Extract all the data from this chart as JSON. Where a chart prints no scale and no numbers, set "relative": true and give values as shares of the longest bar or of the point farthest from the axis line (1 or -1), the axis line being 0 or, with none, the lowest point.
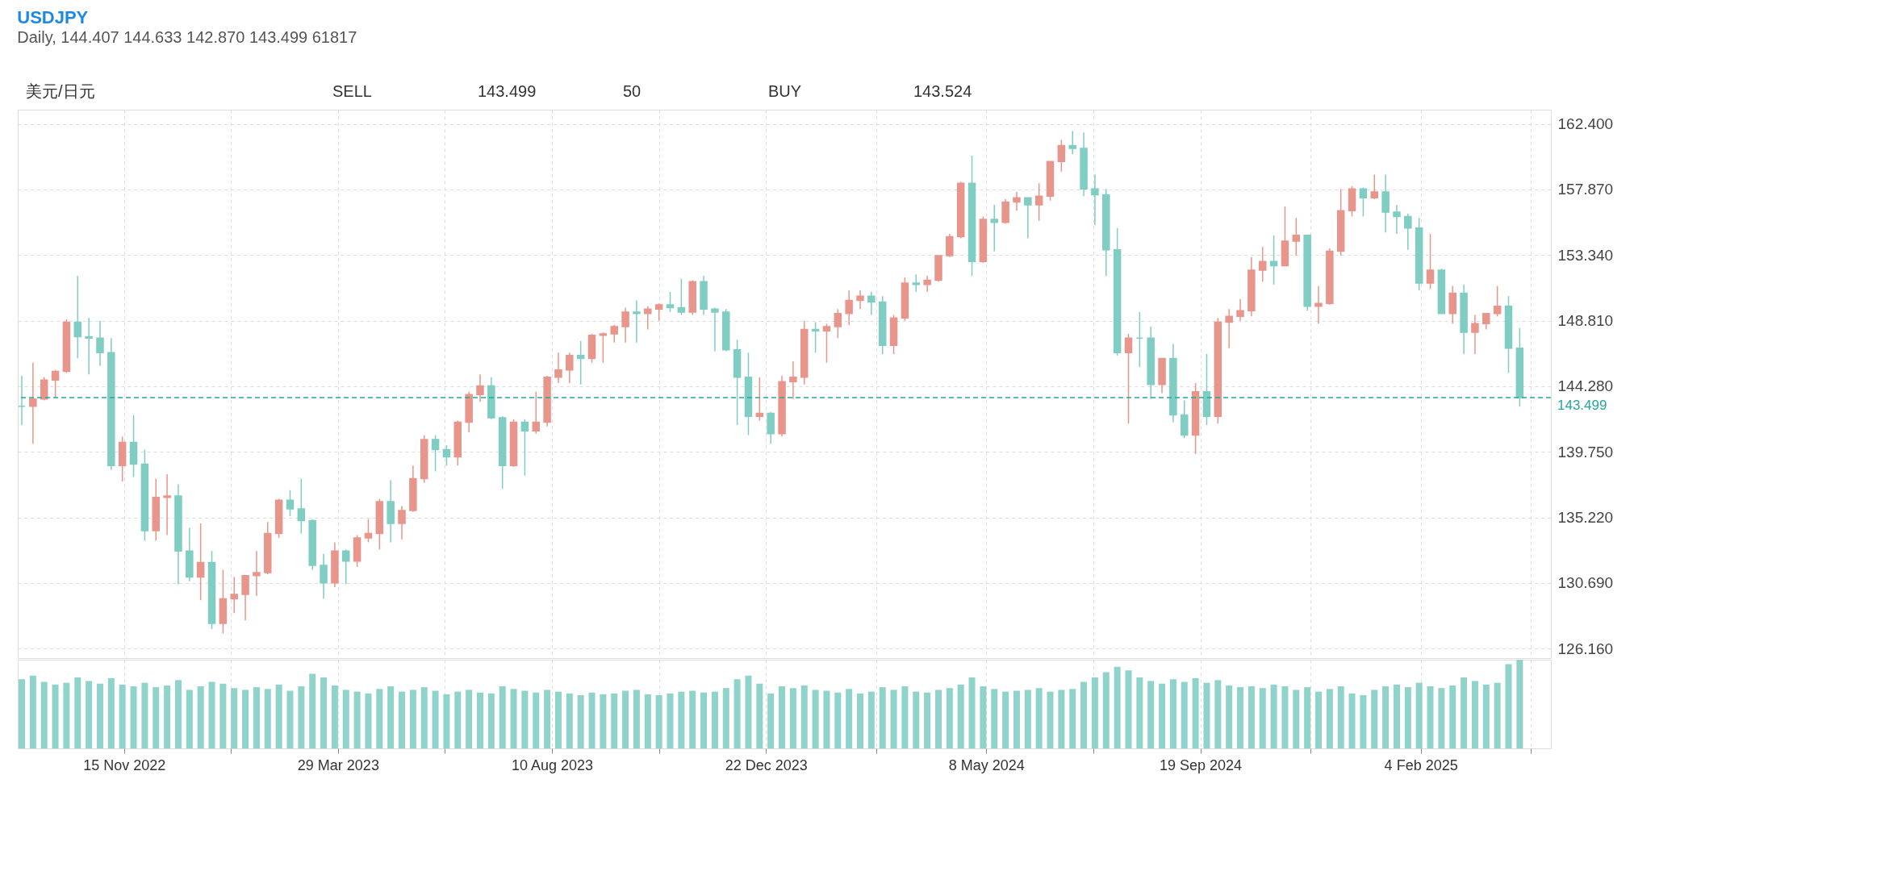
{
  "chart_data": [
    {
      "type": "candlestick",
      "title": "USDJPY",
      "subtitle": "Daily, 144.407 144.633 142.870 143.499 61817",
      "annotations": [
        "美元/日元",
        "SELL",
        "143.499",
        "50",
        "BUY",
        "143.524"
      ],
      "x": [
        "2022-09-12",
        "2022-09-19",
        "2022-09-26",
        "2022-10-03",
        "2022-10-10",
        "2022-10-17",
        "2022-10-24",
        "2022-10-31",
        "2022-11-07",
        "2022-11-14",
        "2022-11-21",
        "2022-11-28",
        "2022-12-05",
        "2022-12-12",
        "2022-12-19",
        "2022-12-26",
        "2023-01-02",
        "2023-01-09",
        "2023-01-16",
        "2023-01-23",
        "2023-01-30",
        "2023-02-06",
        "2023-02-13",
        "2023-02-20",
        "2023-02-27",
        "2023-03-06",
        "2023-03-13",
        "2023-03-20",
        "2023-03-27",
        "2023-04-03",
        "2023-04-10",
        "2023-04-17",
        "2023-04-24",
        "2023-05-01",
        "2023-05-08",
        "2023-05-15",
        "2023-05-22",
        "2023-05-29",
        "2023-06-05",
        "2023-06-12",
        "2023-06-19",
        "2023-06-26",
        "2023-07-03",
        "2023-07-10",
        "2023-07-17",
        "2023-07-24",
        "2023-07-31",
        "2023-08-07",
        "2023-08-14",
        "2023-08-21",
        "2023-08-28",
        "2023-09-04",
        "2023-09-11",
        "2023-09-18",
        "2023-09-25",
        "2023-10-02",
        "2023-10-09",
        "2023-10-16",
        "2023-10-23",
        "2023-10-30",
        "2023-11-06",
        "2023-11-13",
        "2023-11-20",
        "2023-11-27",
        "2023-12-04",
        "2023-12-11",
        "2023-12-18",
        "2023-12-25",
        "2024-01-01",
        "2024-01-08",
        "2024-01-15",
        "2024-01-22",
        "2024-01-29",
        "2024-02-05",
        "2024-02-12",
        "2024-02-19",
        "2024-02-26",
        "2024-03-04",
        "2024-03-11",
        "2024-03-18",
        "2024-03-25",
        "2024-04-01",
        "2024-04-08",
        "2024-04-15",
        "2024-04-22",
        "2024-04-29",
        "2024-05-06",
        "2024-05-13",
        "2024-05-20",
        "2024-05-27",
        "2024-06-03",
        "2024-06-10",
        "2024-06-17",
        "2024-06-24",
        "2024-07-01",
        "2024-07-08",
        "2024-07-15",
        "2024-07-22",
        "2024-07-29",
        "2024-08-05",
        "2024-08-12",
        "2024-08-19",
        "2024-08-26",
        "2024-09-02",
        "2024-09-09",
        "2024-09-16",
        "2024-09-23",
        "2024-09-30",
        "2024-10-07",
        "2024-10-14",
        "2024-10-21",
        "2024-10-28",
        "2024-11-04",
        "2024-11-11",
        "2024-11-18",
        "2024-11-25",
        "2024-12-02",
        "2024-12-09",
        "2024-12-16",
        "2024-12-23",
        "2024-12-30",
        "2025-01-06",
        "2025-01-13",
        "2025-01-20",
        "2025-01-27",
        "2025-02-03",
        "2025-02-10",
        "2025-02-17",
        "2025-02-24",
        "2025-03-03",
        "2025-03-10",
        "2025-03-17",
        "2025-03-24",
        "2025-03-31",
        "2025-04-07"
      ],
      "ohlc": [
        [
          142.9,
          145.0,
          141.6,
          142.9
        ],
        [
          142.9,
          145.9,
          140.3,
          143.4
        ],
        [
          143.4,
          144.9,
          143.3,
          144.7
        ],
        [
          144.7,
          145.4,
          143.5,
          145.3
        ],
        [
          145.3,
          148.9,
          145.2,
          148.7
        ],
        [
          148.7,
          151.9,
          146.2,
          147.7
        ],
        [
          147.7,
          149.0,
          145.1,
          147.6
        ],
        [
          147.6,
          148.8,
          145.7,
          146.6
        ],
        [
          146.6,
          147.6,
          138.5,
          138.8
        ],
        [
          138.8,
          140.8,
          137.7,
          140.4
        ],
        [
          140.4,
          142.3,
          138.0,
          138.9
        ],
        [
          138.9,
          139.9,
          133.6,
          134.3
        ],
        [
          134.3,
          137.9,
          133.6,
          136.6
        ],
        [
          136.6,
          138.2,
          134.0,
          136.7
        ],
        [
          136.7,
          137.5,
          130.6,
          132.9
        ],
        [
          132.9,
          134.5,
          130.8,
          131.1
        ],
        [
          131.1,
          134.8,
          129.5,
          132.1
        ],
        [
          132.1,
          132.9,
          127.5,
          127.9
        ],
        [
          127.9,
          131.6,
          127.2,
          129.6
        ],
        [
          129.6,
          131.1,
          128.6,
          129.9
        ],
        [
          129.9,
          131.2,
          128.1,
          131.2
        ],
        [
          131.2,
          132.9,
          129.8,
          131.4
        ],
        [
          131.4,
          134.9,
          131.3,
          134.1
        ],
        [
          134.1,
          136.5,
          133.8,
          136.4
        ],
        [
          136.4,
          137.1,
          135.3,
          135.8
        ],
        [
          135.8,
          137.9,
          134.1,
          135.0
        ],
        [
          135.0,
          135.1,
          131.6,
          131.9
        ],
        [
          131.9,
          132.7,
          129.6,
          130.7
        ],
        [
          130.7,
          133.5,
          130.4,
          132.9
        ],
        [
          132.9,
          133.0,
          130.6,
          132.2
        ],
        [
          132.2,
          134.0,
          131.8,
          133.8
        ],
        [
          133.8,
          135.1,
          133.5,
          134.1
        ],
        [
          134.1,
          136.5,
          133.0,
          136.3
        ],
        [
          136.3,
          137.8,
          133.5,
          134.8
        ],
        [
          134.8,
          136.0,
          133.7,
          135.7
        ],
        [
          135.7,
          138.8,
          135.6,
          137.9
        ],
        [
          137.9,
          140.9,
          137.6,
          140.6
        ],
        [
          140.6,
          140.9,
          138.4,
          139.9
        ],
        [
          139.9,
          140.2,
          138.8,
          139.4
        ],
        [
          139.4,
          141.9,
          138.8,
          141.8
        ],
        [
          141.8,
          143.9,
          141.1,
          143.7
        ],
        [
          143.7,
          145.1,
          143.2,
          144.3
        ],
        [
          144.3,
          144.9,
          142.0,
          142.1
        ],
        [
          142.1,
          142.2,
          137.2,
          138.8
        ],
        [
          138.8,
          142.0,
          138.7,
          141.8
        ],
        [
          141.8,
          142.0,
          138.1,
          141.2
        ],
        [
          141.2,
          143.9,
          141.0,
          141.8
        ],
        [
          141.8,
          145.0,
          141.5,
          144.9
        ],
        [
          144.9,
          146.6,
          144.5,
          145.4
        ],
        [
          145.4,
          146.6,
          144.5,
          146.4
        ],
        [
          146.4,
          147.4,
          144.4,
          146.2
        ],
        [
          146.2,
          147.9,
          145.9,
          147.8
        ],
        [
          147.8,
          148.0,
          145.9,
          147.9
        ],
        [
          147.9,
          148.5,
          147.3,
          148.4
        ],
        [
          148.4,
          149.7,
          147.3,
          149.4
        ],
        [
          149.4,
          150.2,
          147.3,
          149.3
        ],
        [
          149.3,
          149.8,
          148.2,
          149.6
        ],
        [
          149.6,
          150.0,
          148.8,
          149.9
        ],
        [
          149.9,
          150.8,
          149.4,
          149.7
        ],
        [
          149.7,
          151.7,
          149.2,
          149.4
        ],
        [
          149.4,
          151.6,
          149.2,
          151.5
        ],
        [
          151.5,
          151.9,
          149.2,
          149.6
        ],
        [
          149.6,
          149.7,
          146.7,
          149.4
        ],
        [
          149.4,
          149.6,
          146.7,
          146.8
        ],
        [
          146.8,
          147.5,
          141.6,
          144.9
        ],
        [
          144.9,
          146.6,
          140.9,
          142.2
        ],
        [
          142.2,
          144.9,
          141.9,
          142.4
        ],
        [
          142.4,
          142.5,
          140.3,
          141.0
        ],
        [
          141.0,
          145.0,
          140.8,
          144.6
        ],
        [
          144.6,
          146.0,
          143.4,
          144.9
        ],
        [
          144.9,
          148.8,
          144.4,
          148.2
        ],
        [
          148.2,
          148.7,
          146.6,
          148.1
        ],
        [
          148.1,
          148.6,
          145.9,
          148.4
        ],
        [
          148.4,
          149.6,
          147.6,
          149.3
        ],
        [
          149.3,
          150.9,
          148.5,
          150.2
        ],
        [
          150.2,
          150.9,
          149.6,
          150.5
        ],
        [
          150.5,
          150.8,
          149.2,
          150.1
        ],
        [
          150.1,
          150.5,
          146.5,
          147.1
        ],
        [
          147.1,
          149.2,
          146.5,
          149.0
        ],
        [
          149.0,
          151.8,
          148.8,
          151.4
        ],
        [
          151.4,
          152.0,
          150.8,
          151.3
        ],
        [
          151.3,
          151.9,
          150.8,
          151.6
        ],
        [
          151.6,
          153.3,
          151.5,
          153.3
        ],
        [
          153.3,
          154.8,
          153.2,
          154.6
        ],
        [
          154.6,
          158.4,
          154.5,
          158.3
        ],
        [
          158.3,
          160.2,
          151.9,
          152.9
        ],
        [
          152.9,
          156.0,
          152.8,
          155.8
        ],
        [
          155.8,
          156.8,
          153.6,
          155.6
        ],
        [
          155.6,
          157.2,
          155.5,
          157.0
        ],
        [
          157.0,
          157.7,
          156.4,
          157.3
        ],
        [
          157.3,
          157.3,
          154.5,
          156.8
        ],
        [
          156.8,
          158.3,
          155.7,
          157.4
        ],
        [
          157.4,
          159.8,
          157.1,
          159.8
        ],
        [
          159.8,
          161.3,
          159.1,
          160.9
        ],
        [
          160.9,
          161.9,
          160.3,
          160.7
        ],
        [
          160.7,
          161.8,
          157.4,
          157.9
        ],
        [
          157.9,
          158.9,
          155.4,
          157.5
        ],
        [
          157.5,
          157.9,
          151.9,
          153.7
        ],
        [
          153.7,
          155.2,
          146.4,
          146.6
        ],
        [
          146.6,
          147.9,
          141.7,
          147.6
        ],
        [
          147.6,
          149.4,
          145.6,
          147.6
        ],
        [
          147.6,
          148.4,
          143.4,
          144.4
        ],
        [
          144.4,
          146.2,
          143.8,
          146.2
        ],
        [
          146.2,
          147.2,
          141.8,
          142.3
        ],
        [
          142.3,
          143.3,
          140.7,
          140.9
        ],
        [
          140.9,
          144.5,
          139.6,
          143.9
        ],
        [
          143.9,
          146.5,
          141.6,
          142.2
        ],
        [
          142.2,
          149.0,
          141.7,
          148.7
        ],
        [
          148.7,
          149.6,
          146.9,
          149.1
        ],
        [
          149.1,
          150.3,
          148.8,
          149.5
        ],
        [
          149.5,
          153.2,
          149.1,
          152.3
        ],
        [
          152.3,
          153.9,
          151.5,
          152.9
        ],
        [
          152.9,
          154.7,
          151.3,
          152.6
        ],
        [
          152.6,
          156.7,
          152.6,
          154.3
        ],
        [
          154.3,
          155.9,
          153.3,
          154.7
        ],
        [
          154.7,
          154.7,
          149.5,
          149.8
        ],
        [
          149.8,
          151.2,
          148.6,
          150.0
        ],
        [
          150.0,
          153.8,
          149.9,
          153.6
        ],
        [
          153.6,
          157.9,
          153.3,
          156.4
        ],
        [
          156.4,
          158.1,
          156.0,
          157.9
        ],
        [
          157.9,
          158.0,
          156.0,
          157.3
        ],
        [
          157.3,
          158.9,
          157.2,
          157.7
        ],
        [
          157.7,
          158.9,
          154.9,
          156.3
        ],
        [
          156.3,
          156.8,
          154.8,
          156.0
        ],
        [
          156.0,
          156.2,
          153.7,
          155.2
        ],
        [
          155.2,
          155.9,
          150.9,
          151.4
        ],
        [
          151.4,
          154.8,
          151.0,
          152.3
        ],
        [
          152.3,
          152.4,
          149.3,
          149.3
        ],
        [
          149.3,
          151.2,
          148.6,
          150.7
        ],
        [
          150.7,
          151.3,
          146.5,
          148.0
        ],
        [
          148.0,
          149.2,
          146.5,
          148.6
        ],
        [
          148.6,
          149.3,
          148.2,
          149.3
        ],
        [
          149.3,
          151.2,
          149.1,
          149.8
        ],
        [
          149.8,
          150.5,
          145.2,
          146.9
        ],
        [
          146.9,
          148.3,
          142.87,
          143.499
        ]
      ],
      "colors": [
        "#7fcdc3",
        "#e8968c",
        "#e8968c",
        "#e8968c",
        "#e8968c",
        "#7fcdc3",
        "#7fcdc3",
        "#7fcdc3",
        "#7fcdc3",
        "#e8968c",
        "#7fcdc3",
        "#7fcdc3",
        "#e8968c",
        "#e8968c",
        "#7fcdc3",
        "#7fcdc3",
        "#e8968c",
        "#7fcdc3",
        "#e8968c",
        "#e8968c",
        "#e8968c",
        "#e8968c",
        "#e8968c",
        "#e8968c",
        "#7fcdc3",
        "#7fcdc3",
        "#7fcdc3",
        "#7fcdc3",
        "#e8968c",
        "#7fcdc3",
        "#e8968c",
        "#e8968c",
        "#e8968c",
        "#7fcdc3",
        "#e8968c",
        "#e8968c",
        "#e8968c",
        "#7fcdc3",
        "#7fcdc3",
        "#e8968c",
        "#e8968c",
        "#e8968c",
        "#7fcdc3",
        "#7fcdc3",
        "#e8968c",
        "#7fcdc3",
        "#e8968c",
        "#e8968c",
        "#e8968c",
        "#e8968c",
        "#7fcdc3",
        "#e8968c",
        "#e8968c",
        "#e8968c",
        "#e8968c",
        "#7fcdc3",
        "#e8968c",
        "#e8968c",
        "#7fcdc3",
        "#7fcdc3",
        "#e8968c",
        "#7fcdc3",
        "#7fcdc3",
        "#7fcdc3",
        "#7fcdc3",
        "#7fcdc3",
        "#e8968c",
        "#7fcdc3",
        "#e8968c",
        "#e8968c",
        "#e8968c",
        "#7fcdc3",
        "#e8968c",
        "#e8968c",
        "#e8968c",
        "#e8968c",
        "#7fcdc3",
        "#7fcdc3",
        "#e8968c",
        "#e8968c",
        "#7fcdc3",
        "#e8968c",
        "#e8968c",
        "#e8968c",
        "#e8968c",
        "#7fcdc3",
        "#e8968c",
        "#7fcdc3",
        "#e8968c",
        "#e8968c",
        "#7fcdc3",
        "#e8968c",
        "#e8968c",
        "#e8968c",
        "#7fcdc3",
        "#7fcdc3",
        "#7fcdc3",
        "#7fcdc3",
        "#7fcdc3",
        "#e8968c",
        "#7fcdc3",
        "#7fcdc3",
        "#e8968c",
        "#7fcdc3",
        "#7fcdc3",
        "#e8968c",
        "#7fcdc3",
        "#e8968c",
        "#e8968c",
        "#e8968c",
        "#e8968c",
        "#e8968c",
        "#7fcdc3",
        "#e8968c",
        "#e8968c",
        "#7fcdc3",
        "#e8968c",
        "#e8968c",
        "#e8968c",
        "#e8968c",
        "#7fcdc3",
        "#e8968c",
        "#7fcdc3",
        "#7fcdc3",
        "#7fcdc3",
        "#7fcdc3",
        "#e8968c",
        "#7fcdc3",
        "#e8968c",
        "#7fcdc3",
        "#e8968c",
        "#e8968c",
        "#e8968c",
        "#7fcdc3",
        "#7fcdc3"
      ],
      "xlim": [
        "2022-09-12",
        "2025-04-24"
      ],
      "xticks": [
        {
          "value": "2022-11-15",
          "label": null
        },
        {
          "value": "2023-01-21",
          "label": null
        },
        {
          "value": "2023-03-29",
          "label": null
        },
        {
          "value": "2023-06-04",
          "label": null
        },
        {
          "value": "2023-08-10",
          "label": null
        },
        {
          "value": "2023-10-16",
          "label": null
        },
        {
          "value": "2023-12-22",
          "label": null
        },
        {
          "value": "2024-02-29",
          "label": null
        },
        {
          "value": "2024-05-08",
          "label": null
        },
        {
          "value": "2024-07-14",
          "label": null
        },
        {
          "value": "2024-09-19",
          "label": null
        },
        {
          "value": "2024-11-27",
          "label": null
        },
        {
          "value": "2025-02-04",
          "label": null
        },
        {
          "value": "2025-04-14",
          "label": null
        }
      ],
      "ylim": [
        125.5,
        163.38
      ],
      "yticks": [
        {
          "value": 126.16,
          "label": "126.160"
        },
        {
          "value": 130.69,
          "label": "130.690"
        },
        {
          "value": 135.22,
          "label": "135.220"
        },
        {
          "value": 139.75,
          "label": "139.750"
        },
        {
          "value": 144.28,
          "label": "144.280"
        },
        {
          "value": 148.81,
          "label": "148.810"
        },
        {
          "value": 153.34,
          "label": "153.340"
        },
        {
          "value": 157.87,
          "label": "157.870"
        },
        {
          "value": 162.4,
          "label": "162.400"
        }
      ],
      "ref_lines": [
        {
          "axis": "y",
          "value": 143.499,
          "label": "143.499",
          "color": "#26a69a",
          "line_style": "dashed"
        }
      ],
      "grid": true,
      "tick_labels": "y"
    },
    {
      "type": "bar",
      "relative": true,
      "color": "#8fd3cb",
      "x": [
        "2022-09-12",
        "2022-09-19",
        "2022-09-26",
        "2022-10-03",
        "2022-10-10",
        "2022-10-17",
        "2022-10-24",
        "2022-10-31",
        "2022-11-07",
        "2022-11-14",
        "2022-11-21",
        "2022-11-28",
        "2022-12-05",
        "2022-12-12",
        "2022-12-19",
        "2022-12-26",
        "2023-01-02",
        "2023-01-09",
        "2023-01-16",
        "2023-01-23",
        "2023-01-30",
        "2023-02-06",
        "2023-02-13",
        "2023-02-20",
        "2023-02-27",
        "2023-03-06",
        "2023-03-13",
        "2023-03-20",
        "2023-03-27",
        "2023-04-03",
        "2023-04-10",
        "2023-04-17",
        "2023-04-24",
        "2023-05-01",
        "2023-05-08",
        "2023-05-15",
        "2023-05-22",
        "2023-05-29",
        "2023-06-05",
        "2023-06-12",
        "2023-06-19",
        "2023-06-26",
        "2023-07-03",
        "2023-07-10",
        "2023-07-17",
        "2023-07-24",
        "2023-07-31",
        "2023-08-07",
        "2023-08-14",
        "2023-08-21",
        "2023-08-28",
        "2023-09-04",
        "2023-09-11",
        "2023-09-18",
        "2023-09-25",
        "2023-10-02",
        "2023-10-09",
        "2023-10-16",
        "2023-10-23",
        "2023-10-30",
        "2023-11-06",
        "2023-11-13",
        "2023-11-20",
        "2023-11-27",
        "2023-12-04",
        "2023-12-11",
        "2023-12-18",
        "2023-12-25",
        "2024-01-01",
        "2024-01-08",
        "2024-01-15",
        "2024-01-22",
        "2024-01-29",
        "2024-02-05",
        "2024-02-12",
        "2024-02-19",
        "2024-02-26",
        "2024-03-04",
        "2024-03-11",
        "2024-03-18",
        "2024-03-25",
        "2024-04-01",
        "2024-04-08",
        "2024-04-15",
        "2024-04-22",
        "2024-04-29",
        "2024-05-06",
        "2024-05-13",
        "2024-05-20",
        "2024-05-27",
        "2024-06-03",
        "2024-06-10",
        "2024-06-17",
        "2024-06-24",
        "2024-07-01",
        "2024-07-08",
        "2024-07-15",
        "2024-07-22",
        "2024-07-29",
        "2024-08-05",
        "2024-08-12",
        "2024-08-19",
        "2024-08-26",
        "2024-09-02",
        "2024-09-09",
        "2024-09-16",
        "2024-09-23",
        "2024-09-30",
        "2024-10-07",
        "2024-10-14",
        "2024-10-21",
        "2024-10-28",
        "2024-11-04",
        "2024-11-11",
        "2024-11-18",
        "2024-11-25",
        "2024-12-02",
        "2024-12-09",
        "2024-12-16",
        "2024-12-23",
        "2024-12-30",
        "2025-01-06",
        "2025-01-13",
        "2025-01-20",
        "2025-01-27",
        "2025-02-03",
        "2025-02-10",
        "2025-02-17",
        "2025-02-24",
        "2025-03-03",
        "2025-03-10",
        "2025-03-17",
        "2025-03-24",
        "2025-03-31",
        "2025-04-07"
      ],
      "values": [
        0.78,
        0.82,
        0.75,
        0.72,
        0.74,
        0.8,
        0.76,
        0.73,
        0.79,
        0.72,
        0.7,
        0.74,
        0.69,
        0.71,
        0.77,
        0.66,
        0.7,
        0.75,
        0.73,
        0.68,
        0.66,
        0.69,
        0.67,
        0.72,
        0.65,
        0.7,
        0.84,
        0.8,
        0.71,
        0.66,
        0.64,
        0.62,
        0.67,
        0.7,
        0.64,
        0.66,
        0.69,
        0.65,
        0.61,
        0.64,
        0.66,
        0.63,
        0.62,
        0.7,
        0.67,
        0.65,
        0.63,
        0.66,
        0.64,
        0.62,
        0.6,
        0.63,
        0.61,
        0.62,
        0.65,
        0.66,
        0.61,
        0.6,
        0.62,
        0.64,
        0.65,
        0.63,
        0.64,
        0.68,
        0.78,
        0.82,
        0.73,
        0.62,
        0.7,
        0.68,
        0.71,
        0.66,
        0.65,
        0.63,
        0.67,
        0.62,
        0.64,
        0.69,
        0.66,
        0.7,
        0.64,
        0.63,
        0.66,
        0.68,
        0.72,
        0.8,
        0.7,
        0.67,
        0.64,
        0.65,
        0.66,
        0.68,
        0.64,
        0.66,
        0.67,
        0.75,
        0.8,
        0.86,
        0.92,
        0.88,
        0.8,
        0.76,
        0.73,
        0.78,
        0.75,
        0.79,
        0.74,
        0.77,
        0.71,
        0.69,
        0.7,
        0.68,
        0.72,
        0.7,
        0.66,
        0.69,
        0.64,
        0.67,
        0.7,
        0.62,
        0.6,
        0.66,
        0.7,
        0.72,
        0.69,
        0.74,
        0.7,
        0.68,
        0.71,
        0.8,
        0.76,
        0.72,
        0.74,
        0.95,
        1.0
      ],
      "xlim": [
        "2022-09-12",
        "2025-04-24"
      ],
      "xticks": [
        {
          "value": "2022-11-15",
          "label": "15 Nov 2022"
        },
        {
          "value": "2023-01-21",
          "label": null
        },
        {
          "value": "2023-03-29",
          "label": "29 Mar 2023"
        },
        {
          "value": "2023-06-04",
          "label": null
        },
        {
          "value": "2023-08-10",
          "label": "10 Aug 2023"
        },
        {
          "value": "2023-10-16",
          "label": null
        },
        {
          "value": "2023-12-22",
          "label": "22 Dec 2023"
        },
        {
          "value": "2024-02-29",
          "label": null
        },
        {
          "value": "2024-05-08",
          "label": "8 May 2024"
        },
        {
          "value": "2024-07-14",
          "label": null
        },
        {
          "value": "2024-09-19",
          "label": "19 Sep 2024"
        },
        {
          "value": "2024-11-27",
          "label": null
        },
        {
          "value": "2025-02-04",
          "label": "4 Feb 2025"
        },
        {
          "value": "2025-04-14",
          "label": null
        }
      ],
      "grid": "x",
      "tick_labels": "x"
    }
  ]
}
